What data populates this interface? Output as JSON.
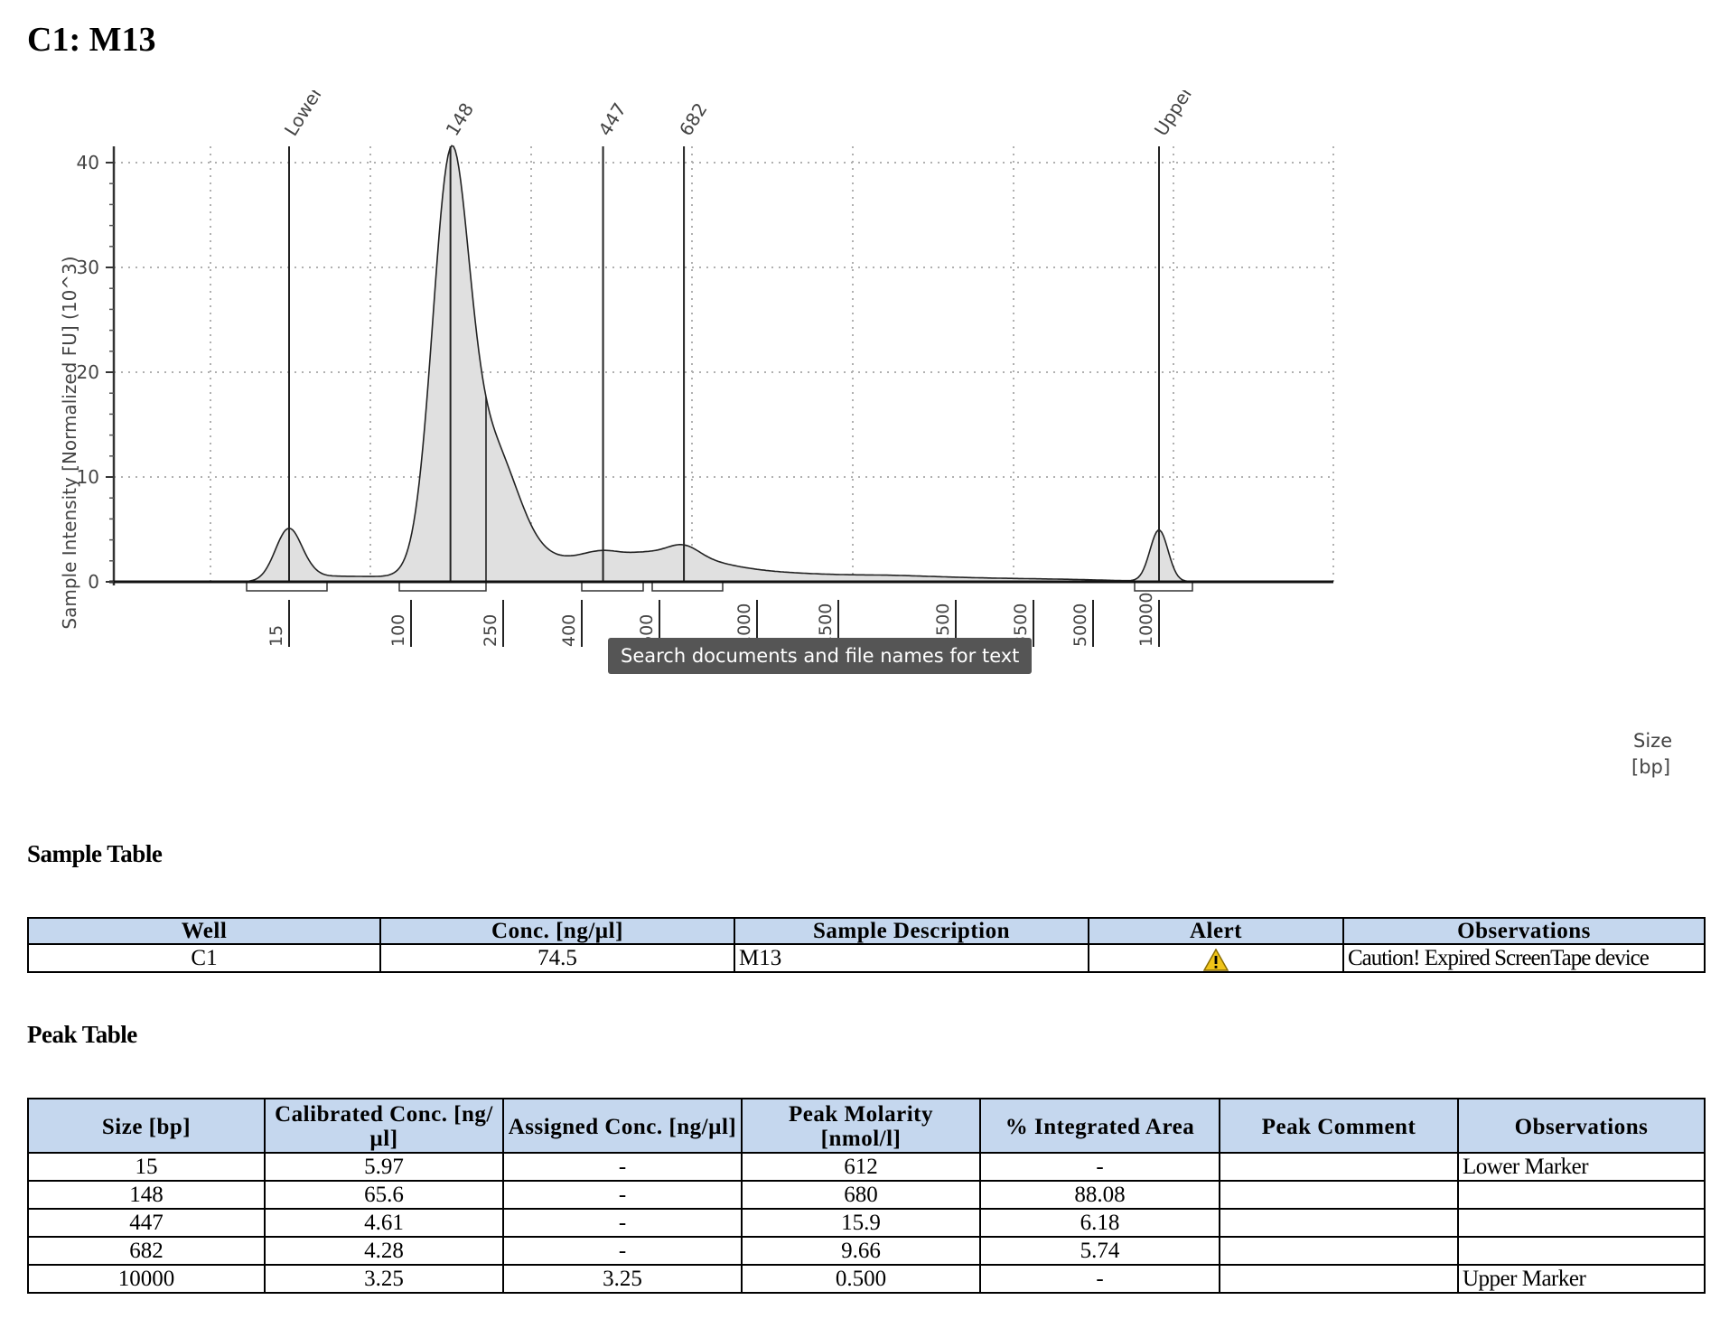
{
  "page": {
    "title": "C1: M13",
    "tooltip": "Search documents and file names for text"
  },
  "chart_data": {
    "type": "area",
    "ylabel": "Sample Intensity [Normalized FU] (10^3)",
    "xlabel_line1": "Size",
    "xlabel_line2": "[bp]",
    "ylim": [
      0,
      40
    ],
    "y_ticks": [
      0,
      10,
      20,
      30,
      40
    ],
    "x_ticks": [
      "15",
      "100",
      "250",
      "400",
      "600",
      "1000",
      "1500",
      "2500",
      "3500",
      "5000",
      "10000"
    ],
    "grid": true,
    "peaks": [
      {
        "label": "Lower",
        "size_bp": 15,
        "height": 5.1
      },
      {
        "label": "148",
        "size_bp": 148,
        "height": 39.5
      },
      {
        "label": "447",
        "size_bp": 447,
        "height": 2.2
      },
      {
        "label": "682",
        "size_bp": 682,
        "height": 2.1
      },
      {
        "label": "Upper",
        "size_bp": 10000,
        "height": 4.9
      }
    ]
  },
  "sample_table": {
    "title": "Sample Table",
    "headers": [
      "Well",
      "Conc. [ng/µl]",
      "Sample Description",
      "Alert",
      "Observations"
    ],
    "rows": [
      {
        "well": "C1",
        "conc": "74.5",
        "description": "M13",
        "alert_icon": "warning-icon",
        "observations": "Caution! Expired ScreenTape device"
      }
    ]
  },
  "peak_table": {
    "title": "Peak Table",
    "headers": [
      "Size [bp]",
      "Calibrated Conc. [ng/µl]",
      "Assigned Conc. [ng/µl]",
      "Peak Molarity [nmol/l]",
      "% Integrated Area",
      "Peak Comment",
      "Observations"
    ],
    "rows": [
      [
        "15",
        "5.97",
        "-",
        "612",
        "-",
        "",
        "Lower Marker"
      ],
      [
        "148",
        "65.6",
        "-",
        "680",
        "88.08",
        "",
        ""
      ],
      [
        "447",
        "4.61",
        "-",
        "15.9",
        "6.18",
        "",
        ""
      ],
      [
        "682",
        "4.28",
        "-",
        "9.66",
        "5.74",
        "",
        ""
      ],
      [
        "10000",
        "3.25",
        "3.25",
        "0.500",
        "-",
        "",
        "Upper Marker"
      ]
    ]
  },
  "colors": {
    "header_fill": "#c5d7ee",
    "peak_fill": "#e0e0e0",
    "alert_icon": "#f0c419"
  }
}
